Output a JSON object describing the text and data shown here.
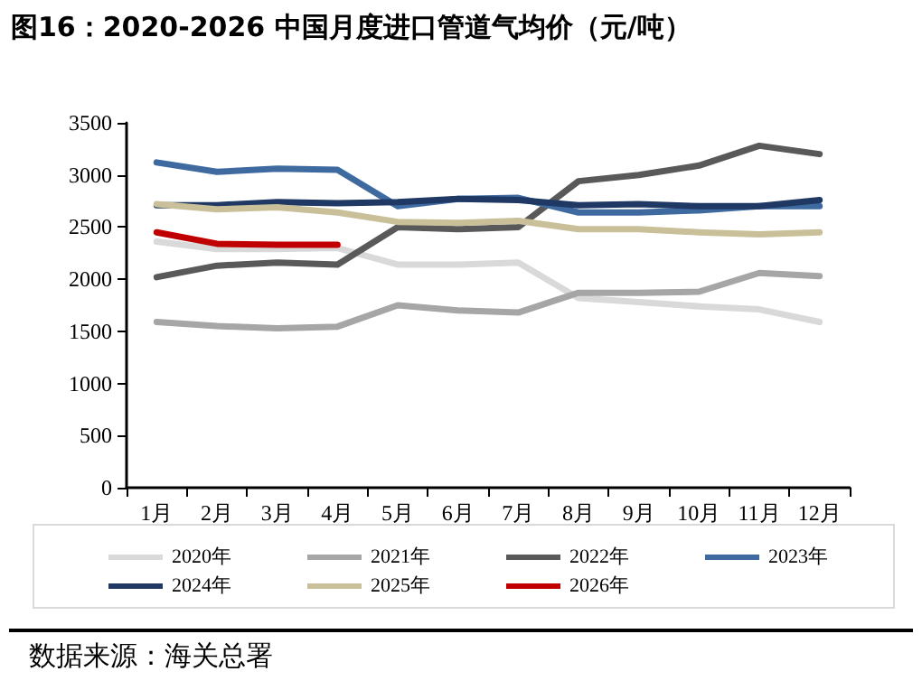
{
  "chart_data": {
    "type": "line",
    "title": "图16：2020-2026 中国月度进口管道气均价（元/吨）",
    "categories": [
      "1月",
      "2月",
      "3月",
      "4月",
      "5月",
      "6月",
      "7月",
      "8月",
      "9月",
      "10月",
      "11月",
      "12月"
    ],
    "series": [
      {
        "name": "2020年",
        "color": "#d9d9d9",
        "values": [
          2360,
          2290,
          2290,
          2300,
          2140,
          2140,
          2160,
          1820,
          1780,
          1740,
          1710,
          1590
        ]
      },
      {
        "name": "2021年",
        "color": "#a6a6a6",
        "values": [
          1590,
          1550,
          1530,
          1545,
          1750,
          1700,
          1680,
          1870,
          1870,
          1880,
          2060,
          2030
        ]
      },
      {
        "name": "2022年",
        "color": "#595959",
        "values": [
          2020,
          2130,
          2160,
          2140,
          2500,
          2480,
          2500,
          2940,
          3000,
          3090,
          3280,
          3200
        ]
      },
      {
        "name": "2023年",
        "color": "#3e6aa0",
        "values": [
          3120,
          3030,
          3060,
          3050,
          2700,
          2770,
          2780,
          2640,
          2640,
          2660,
          2700,
          2700
        ]
      },
      {
        "name": "2024年",
        "color": "#1f3864",
        "values": [
          2710,
          2710,
          2740,
          2730,
          2740,
          2770,
          2760,
          2710,
          2720,
          2700,
          2700,
          2760
        ]
      },
      {
        "name": "2025年",
        "color": "#c9c09a",
        "values": [
          2720,
          2670,
          2690,
          2640,
          2550,
          2540,
          2560,
          2480,
          2480,
          2450,
          2430,
          2450
        ]
      },
      {
        "name": "2026年",
        "color": "#c00000",
        "values": [
          2450,
          2340,
          2330,
          2330,
          null,
          null,
          null,
          null,
          null,
          null,
          null,
          null
        ]
      }
    ],
    "ylim": [
      0,
      3500
    ],
    "yticks": [
      0,
      500,
      1000,
      1500,
      2000,
      2500,
      3000,
      3500
    ],
    "grid": false,
    "legend": "bottom",
    "marker": "none",
    "line_style": "solid",
    "annotations": [
      "数据来源：海关总署"
    ]
  }
}
